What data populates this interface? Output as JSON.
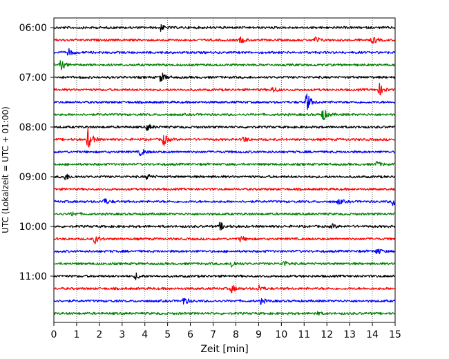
{
  "chart_data": {
    "type": "line",
    "title": "",
    "xlabel": "Zeit  [min]",
    "ylabel": "UTC (Lokalzeit = UTC + 01:00)",
    "xlim": [
      0,
      15
    ],
    "x_ticks": [
      "0",
      "1",
      "2",
      "3",
      "4",
      "5",
      "6",
      "7",
      "8",
      "9",
      "10",
      "11",
      "12",
      "13",
      "14",
      "15"
    ],
    "y_tick_labels": [
      "06:00",
      "07:00",
      "08:00",
      "09:00",
      "10:00",
      "11:00"
    ],
    "grid": "vertical-dotted",
    "trace_minutes": 15,
    "trace_colors": [
      "#000000",
      "#ff0000",
      "#0000ff",
      "#008000"
    ],
    "traces": [
      {
        "start": "06:00",
        "color": "#000000",
        "events": [
          {
            "t": 4.7,
            "amp": 0.9
          }
        ]
      },
      {
        "start": "06:15",
        "color": "#ff0000",
        "events": [
          {
            "t": 8.2,
            "amp": 0.9
          },
          {
            "t": 11.5,
            "amp": 1.0
          },
          {
            "t": 14.0,
            "amp": 1.2
          }
        ]
      },
      {
        "start": "06:30",
        "color": "#0000ff",
        "events": [
          {
            "t": 0.6,
            "amp": 1.3
          }
        ]
      },
      {
        "start": "06:45",
        "color": "#008000",
        "events": [
          {
            "t": 0.3,
            "amp": 1.6
          }
        ]
      },
      {
        "start": "07:00",
        "color": "#000000",
        "events": [
          {
            "t": 4.7,
            "amp": 1.6
          }
        ]
      },
      {
        "start": "07:15",
        "color": "#ff0000",
        "events": [
          {
            "t": 9.6,
            "amp": 1.0
          },
          {
            "t": 14.3,
            "amp": 1.8
          }
        ]
      },
      {
        "start": "07:30",
        "color": "#0000ff",
        "events": [
          {
            "t": 11.1,
            "amp": 3.0
          }
        ]
      },
      {
        "start": "07:45",
        "color": "#008000",
        "events": [
          {
            "t": 11.8,
            "amp": 2.2
          }
        ]
      },
      {
        "start": "08:00",
        "color": "#000000",
        "events": [
          {
            "t": 4.1,
            "amp": 1.0
          }
        ]
      },
      {
        "start": "08:15",
        "color": "#ff0000",
        "events": [
          {
            "t": 1.5,
            "amp": 3.2
          },
          {
            "t": 4.8,
            "amp": 2.0
          },
          {
            "t": 8.3,
            "amp": 1.0
          }
        ]
      },
      {
        "start": "08:30",
        "color": "#0000ff",
        "events": [
          {
            "t": 3.8,
            "amp": 1.2
          }
        ]
      },
      {
        "start": "08:45",
        "color": "#008000",
        "events": [
          {
            "t": 14.2,
            "amp": 0.8
          }
        ]
      },
      {
        "start": "09:00",
        "color": "#000000",
        "events": [
          {
            "t": 0.5,
            "amp": 1.0
          },
          {
            "t": 4.1,
            "amp": 0.8
          }
        ]
      },
      {
        "start": "09:15",
        "color": "#ff0000",
        "events": []
      },
      {
        "start": "09:30",
        "color": "#0000ff",
        "events": [
          {
            "t": 2.2,
            "amp": 1.0
          },
          {
            "t": 12.5,
            "amp": 0.8
          },
          {
            "t": 14.9,
            "amp": 1.2
          }
        ]
      },
      {
        "start": "09:45",
        "color": "#008000",
        "events": [
          {
            "t": 0.8,
            "amp": 0.6
          }
        ]
      },
      {
        "start": "10:00",
        "color": "#000000",
        "events": [
          {
            "t": 7.3,
            "amp": 1.2
          },
          {
            "t": 12.2,
            "amp": 0.7
          }
        ]
      },
      {
        "start": "10:15",
        "color": "#ff0000",
        "events": [
          {
            "t": 1.8,
            "amp": 1.4
          },
          {
            "t": 8.2,
            "amp": 0.8
          }
        ]
      },
      {
        "start": "10:30",
        "color": "#0000ff",
        "events": [
          {
            "t": 14.2,
            "amp": 1.0
          }
        ]
      },
      {
        "start": "10:45",
        "color": "#008000",
        "events": [
          {
            "t": 7.8,
            "amp": 1.2
          },
          {
            "t": 10.1,
            "amp": 0.8
          }
        ]
      },
      {
        "start": "11:00",
        "color": "#000000",
        "events": [
          {
            "t": 3.6,
            "amp": 0.9
          }
        ]
      },
      {
        "start": "11:15",
        "color": "#ff0000",
        "events": [
          {
            "t": 7.8,
            "amp": 1.2
          },
          {
            "t": 9.0,
            "amp": 1.0
          }
        ]
      },
      {
        "start": "11:30",
        "color": "#0000ff",
        "events": [
          {
            "t": 5.7,
            "amp": 1.2
          },
          {
            "t": 9.1,
            "amp": 0.8
          }
        ]
      },
      {
        "start": "11:45",
        "color": "#008000",
        "events": [
          {
            "t": 11.5,
            "amp": 0.6
          }
        ]
      }
    ]
  }
}
